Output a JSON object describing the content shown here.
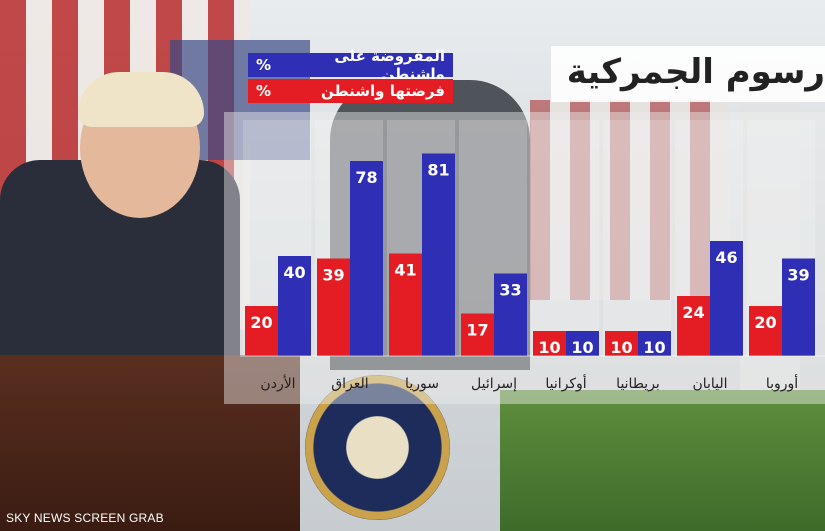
{
  "title": "رسوم الجمركية",
  "legend": [
    {
      "label": "المفروضة على واشنطن",
      "unit": "%",
      "color": "#2e2fb5"
    },
    {
      "label": "فرضتها واشنطن",
      "unit": "%",
      "color": "#e31d23"
    }
  ],
  "chart_data": {
    "type": "bar",
    "title": "رسوم الجمركية",
    "categories": [
      "الأردن",
      "العراق",
      "سوريا",
      "إسرائيل",
      "أوكرانيا",
      "بريطانيا",
      "اليابان",
      "أوروبا"
    ],
    "series": [
      {
        "name": "فرضتها واشنطن",
        "color": "#e31d23",
        "values": [
          20,
          39,
          41,
          17,
          10,
          10,
          24,
          20
        ]
      },
      {
        "name": "المفروضة على واشنطن",
        "color": "#2e2fb5",
        "values": [
          40,
          78,
          81,
          33,
          10,
          10,
          46,
          39
        ]
      }
    ],
    "ylim": [
      0,
      100
    ],
    "grid": false,
    "legend_position": "top-left"
  },
  "footer": "SKY NEWS SCREEN GRAB"
}
